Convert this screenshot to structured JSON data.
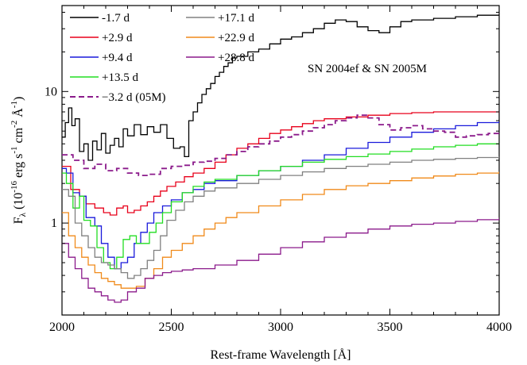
{
  "chart_data": {
    "type": "line",
    "step": true,
    "annotation": "SN 2004ef & SN 2005M",
    "xlabel": "Rest-frame Wavelength [Å]",
    "ylabel": {
      "base": "F",
      "sub": "λ",
      "open": " (10",
      "exp1": "-16",
      "unit1": " erg s",
      "exp2": "-1",
      "unit2": " cm",
      "exp3": "-2",
      "unit3": " Å",
      "exp4": "-1",
      "close": ")"
    },
    "xlim": [
      2000,
      4000
    ],
    "ylim": [
      0.2,
      45
    ],
    "yscale": "log",
    "grid": false,
    "legend_position": "top-left",
    "x_ticks": [
      2000,
      2500,
      3000,
      3500,
      4000
    ],
    "y_ticks": [
      1,
      10
    ],
    "series": [
      {
        "name": "-1.7 d",
        "color": "#000000",
        "dash": false,
        "x": [
          2000,
          2015,
          2030,
          2045,
          2060,
          2080,
          2100,
          2120,
          2140,
          2160,
          2180,
          2200,
          2220,
          2240,
          2260,
          2280,
          2300,
          2330,
          2360,
          2390,
          2420,
          2450,
          2480,
          2510,
          2540,
          2560,
          2580,
          2600,
          2620,
          2640,
          2660,
          2680,
          2700,
          2720,
          2740,
          2760,
          2780,
          2800,
          2850,
          2900,
          2950,
          3000,
          3050,
          3100,
          3150,
          3200,
          3250,
          3300,
          3350,
          3400,
          3450,
          3500,
          3550,
          3600,
          3700,
          3800,
          3900,
          4000
        ],
        "y": [
          4.5,
          5.8,
          7.5,
          5.5,
          6.2,
          3.5,
          4.0,
          3.0,
          4.2,
          3.6,
          4.8,
          3.4,
          3.9,
          4.4,
          3.8,
          5.2,
          4.6,
          5.6,
          4.7,
          5.4,
          4.9,
          5.6,
          4.4,
          3.7,
          3.8,
          3.2,
          6.0,
          7.0,
          8.2,
          9.5,
          10.5,
          11.5,
          13.0,
          14.0,
          15.5,
          16.5,
          18.0,
          18.5,
          20.0,
          21.0,
          23.0,
          25.0,
          26.0,
          28.0,
          30.0,
          33.0,
          35.0,
          34.0,
          31.0,
          29.0,
          28.0,
          31.0,
          34.0,
          35.0,
          36.0,
          37.0,
          38.0,
          38.5
        ]
      },
      {
        "name": "+2.9 d",
        "color": "#e8001a",
        "dash": false,
        "x": [
          2000,
          2040,
          2080,
          2110,
          2150,
          2190,
          2220,
          2250,
          2280,
          2300,
          2330,
          2360,
          2390,
          2420,
          2450,
          2480,
          2520,
          2560,
          2600,
          2650,
          2700,
          2750,
          2800,
          2850,
          2900,
          2950,
          3000,
          3050,
          3100,
          3150,
          3200,
          3300,
          3400,
          3500,
          3600,
          3700,
          3800,
          3900,
          4000
        ],
        "y": [
          2.7,
          1.8,
          1.6,
          1.4,
          1.3,
          1.2,
          1.15,
          1.3,
          1.35,
          1.2,
          1.25,
          1.35,
          1.45,
          1.6,
          1.75,
          1.9,
          2.05,
          2.25,
          2.4,
          2.6,
          2.9,
          3.3,
          3.7,
          4.0,
          4.4,
          4.8,
          5.1,
          5.4,
          5.7,
          6.0,
          6.2,
          6.4,
          6.6,
          6.8,
          6.9,
          7.0,
          7.0,
          7.0,
          6.9
        ]
      },
      {
        "name": "+9.4 d",
        "color": "#1a1adb",
        "dash": false,
        "x": [
          2000,
          2020,
          2050,
          2080,
          2110,
          2150,
          2180,
          2210,
          2240,
          2270,
          2300,
          2330,
          2360,
          2390,
          2420,
          2460,
          2500,
          2550,
          2600,
          2650,
          2700,
          2800,
          2900,
          3000,
          3100,
          3200,
          3300,
          3400,
          3500,
          3600,
          3700,
          3800,
          3900,
          4000
        ],
        "y": [
          2.6,
          2.4,
          1.7,
          1.6,
          1.1,
          0.95,
          0.7,
          0.55,
          0.45,
          0.5,
          0.55,
          0.7,
          0.85,
          1.0,
          1.2,
          1.35,
          1.5,
          1.7,
          1.8,
          2.0,
          2.1,
          2.3,
          2.5,
          2.7,
          3.0,
          3.3,
          3.7,
          4.1,
          4.5,
          4.9,
          5.2,
          5.5,
          5.8,
          6.0
        ]
      },
      {
        "name": "+13.5 d",
        "color": "#22dd22",
        "dash": false,
        "x": [
          2000,
          2020,
          2050,
          2080,
          2100,
          2130,
          2160,
          2190,
          2220,
          2250,
          2280,
          2310,
          2340,
          2370,
          2400,
          2430,
          2460,
          2500,
          2550,
          2600,
          2650,
          2700,
          2800,
          2900,
          3000,
          3100,
          3200,
          3300,
          3400,
          3500,
          3600,
          3700,
          3800,
          3900,
          4000
        ],
        "y": [
          2.4,
          2.0,
          1.3,
          1.6,
          1.05,
          0.95,
          0.65,
          0.5,
          0.45,
          0.55,
          0.75,
          0.8,
          0.7,
          0.7,
          0.85,
          1.0,
          1.2,
          1.45,
          1.7,
          1.9,
          2.05,
          2.15,
          2.3,
          2.5,
          2.7,
          2.9,
          3.05,
          3.2,
          3.35,
          3.5,
          3.65,
          3.8,
          3.9,
          4.0,
          4.0
        ]
      },
      {
        "name": "+17.1 d",
        "color": "#808080",
        "dash": false,
        "x": [
          2000,
          2030,
          2060,
          2090,
          2120,
          2150,
          2180,
          2210,
          2240,
          2270,
          2300,
          2330,
          2360,
          2390,
          2420,
          2450,
          2480,
          2520,
          2560,
          2600,
          2650,
          2700,
          2800,
          2900,
          3000,
          3100,
          3200,
          3300,
          3400,
          3500,
          3600,
          3700,
          3800,
          3900,
          4000
        ],
        "y": [
          1.8,
          1.6,
          1.0,
          0.8,
          0.65,
          0.55,
          0.5,
          0.48,
          0.45,
          0.42,
          0.38,
          0.4,
          0.45,
          0.52,
          0.62,
          0.8,
          1.05,
          1.25,
          1.45,
          1.6,
          1.75,
          1.85,
          2.0,
          2.15,
          2.3,
          2.45,
          2.6,
          2.7,
          2.8,
          2.9,
          3.0,
          3.05,
          3.1,
          3.15,
          3.2
        ]
      },
      {
        "name": "+22.9 d",
        "color": "#f08a1a",
        "dash": false,
        "x": [
          2000,
          2030,
          2060,
          2090,
          2120,
          2150,
          2180,
          2210,
          2240,
          2270,
          2300,
          2340,
          2380,
          2420,
          2460,
          2500,
          2550,
          2600,
          2650,
          2700,
          2750,
          2800,
          2900,
          3000,
          3100,
          3200,
          3300,
          3400,
          3500,
          3600,
          3700,
          3800,
          3900,
          4000
        ],
        "y": [
          1.2,
          0.8,
          0.65,
          0.55,
          0.48,
          0.42,
          0.38,
          0.36,
          0.34,
          0.32,
          0.32,
          0.33,
          0.38,
          0.45,
          0.55,
          0.62,
          0.7,
          0.8,
          0.9,
          1.0,
          1.1,
          1.2,
          1.35,
          1.5,
          1.65,
          1.8,
          1.92,
          2.0,
          2.1,
          2.2,
          2.28,
          2.35,
          2.4,
          2.45
        ]
      },
      {
        "name": "+28.8 d",
        "color": "#8b1a8b",
        "dash": false,
        "x": [
          2000,
          2030,
          2060,
          2090,
          2120,
          2150,
          2180,
          2210,
          2240,
          2270,
          2300,
          2340,
          2380,
          2420,
          2460,
          2500,
          2550,
          2600,
          2700,
          2800,
          2900,
          3000,
          3100,
          3200,
          3300,
          3400,
          3500,
          3600,
          3700,
          3800,
          3900,
          4000
        ],
        "y": [
          0.7,
          0.55,
          0.45,
          0.38,
          0.32,
          0.3,
          0.28,
          0.26,
          0.25,
          0.26,
          0.3,
          0.32,
          0.38,
          0.4,
          0.42,
          0.43,
          0.44,
          0.45,
          0.48,
          0.52,
          0.58,
          0.65,
          0.72,
          0.78,
          0.84,
          0.9,
          0.95,
          0.98,
          1.0,
          1.03,
          1.06,
          1.1
        ]
      },
      {
        "name": "−3.2 d (05M)",
        "color": "#8b1a8b",
        "dash": true,
        "x": [
          2000,
          2050,
          2100,
          2150,
          2200,
          2250,
          2300,
          2350,
          2400,
          2450,
          2500,
          2550,
          2600,
          2650,
          2700,
          2750,
          2800,
          2850,
          2900,
          2950,
          3000,
          3050,
          3100,
          3150,
          3200,
          3250,
          3300,
          3350,
          3400,
          3450,
          3500,
          3550,
          3600,
          3650,
          3700,
          3750,
          3800,
          3850,
          3900,
          3950,
          4000
        ],
        "y": [
          3.3,
          3.0,
          2.6,
          2.8,
          2.5,
          2.6,
          2.4,
          2.3,
          2.35,
          2.6,
          2.7,
          2.75,
          2.9,
          2.95,
          3.1,
          3.3,
          3.5,
          3.8,
          4.0,
          4.2,
          4.5,
          4.7,
          5.0,
          5.3,
          5.6,
          6.0,
          6.3,
          6.6,
          6.3,
          5.6,
          5.1,
          5.3,
          5.5,
          5.2,
          5.0,
          4.9,
          4.5,
          4.6,
          4.7,
          4.8,
          4.9
        ]
      }
    ]
  }
}
